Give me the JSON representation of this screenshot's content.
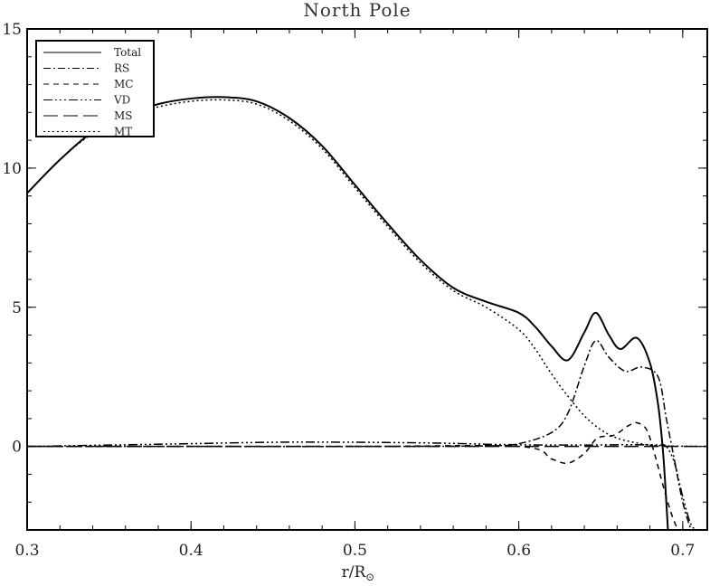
{
  "chart_data": {
    "type": "line",
    "title": "North Pole",
    "xlabel": "r/R",
    "xlabel_subscript": "⊙",
    "ylabel": "",
    "xlim": [
      0.3,
      0.715
    ],
    "ylim": [
      -3,
      15
    ],
    "xticks": [
      0.3,
      0.4,
      0.5,
      0.6,
      0.7
    ],
    "xtick_labels": [
      "0.3",
      "0.4",
      "0.5",
      "0.6",
      "0.7"
    ],
    "yticks": [
      0,
      5,
      10,
      15
    ],
    "ytick_labels": [
      "0",
      "5",
      "10",
      "15"
    ],
    "legend_position": "top-left",
    "grid": false,
    "series": [
      {
        "name": "Total",
        "dash": "solid",
        "width": 2,
        "x": [
          0.3,
          0.32,
          0.34,
          0.36,
          0.38,
          0.4,
          0.42,
          0.44,
          0.46,
          0.48,
          0.5,
          0.52,
          0.54,
          0.56,
          0.58,
          0.6,
          0.61,
          0.62,
          0.63,
          0.64,
          0.647,
          0.655,
          0.662,
          0.672,
          0.68,
          0.685,
          0.688,
          0.69,
          0.691
        ],
        "y": [
          9.1,
          10.3,
          11.3,
          11.9,
          12.3,
          12.5,
          12.55,
          12.4,
          11.8,
          10.8,
          9.4,
          8.0,
          6.7,
          5.7,
          5.2,
          4.8,
          4.3,
          3.6,
          3.1,
          4.1,
          4.8,
          4.0,
          3.5,
          3.9,
          3.0,
          1.5,
          -0.2,
          -2.0,
          -3.0
        ]
      },
      {
        "name": "RS",
        "dash": "8,3,2,3",
        "width": 1.5,
        "x": [
          0.3,
          0.4,
          0.5,
          0.58,
          0.6,
          0.62,
          0.63,
          0.64,
          0.647,
          0.655,
          0.665,
          0.675,
          0.685,
          0.69,
          0.695,
          0.7,
          0.705
        ],
        "y": [
          0.0,
          0.0,
          0.0,
          0.02,
          0.1,
          0.5,
          1.2,
          2.9,
          3.8,
          3.2,
          2.7,
          2.85,
          2.5,
          1.0,
          -0.5,
          -2.0,
          -3.0
        ]
      },
      {
        "name": "MC",
        "dash": "6,5",
        "width": 1.5,
        "x": [
          0.3,
          0.5,
          0.6,
          0.62,
          0.63,
          0.64,
          0.648,
          0.658,
          0.667,
          0.672,
          0.678,
          0.683,
          0.688,
          0.693,
          0.697
        ],
        "y": [
          0.0,
          0.0,
          0.0,
          -0.45,
          -0.6,
          -0.25,
          0.3,
          0.4,
          0.75,
          0.85,
          0.6,
          -0.3,
          -1.4,
          -2.4,
          -3.0
        ]
      },
      {
        "name": "VD",
        "dash": "10,3,2,3,2,3,2,3",
        "width": 1.5,
        "x": [
          0.3,
          0.35,
          0.4,
          0.45,
          0.5,
          0.55,
          0.58,
          0.6,
          0.62,
          0.64,
          0.66,
          0.675,
          0.685,
          0.69,
          0.695,
          0.7,
          0.705,
          0.709
        ],
        "y": [
          0.0,
          0.05,
          0.1,
          0.15,
          0.15,
          0.12,
          0.08,
          0.06,
          0.05,
          0.05,
          0.06,
          0.06,
          0.05,
          0.0,
          -0.6,
          -1.8,
          -2.8,
          -3.0
        ]
      },
      {
        "name": "MS",
        "dash": "16,6",
        "width": 1.5,
        "x": [
          0.3,
          0.715
        ],
        "y": [
          0.0,
          0.0
        ]
      },
      {
        "name": "MT",
        "dash": "2,3",
        "width": 1.5,
        "x": [
          0.3,
          0.32,
          0.34,
          0.36,
          0.38,
          0.4,
          0.42,
          0.44,
          0.46,
          0.48,
          0.5,
          0.52,
          0.54,
          0.56,
          0.58,
          0.6,
          0.61,
          0.62,
          0.63,
          0.64,
          0.65,
          0.66,
          0.67,
          0.68,
          0.69,
          0.7,
          0.715
        ],
        "y": [
          9.1,
          10.3,
          11.25,
          11.85,
          12.2,
          12.4,
          12.45,
          12.3,
          11.7,
          10.7,
          9.3,
          7.9,
          6.6,
          5.6,
          5.0,
          4.2,
          3.5,
          2.6,
          1.8,
          1.1,
          0.6,
          0.3,
          0.15,
          0.05,
          0.02,
          0.01,
          0.0
        ]
      }
    ]
  }
}
